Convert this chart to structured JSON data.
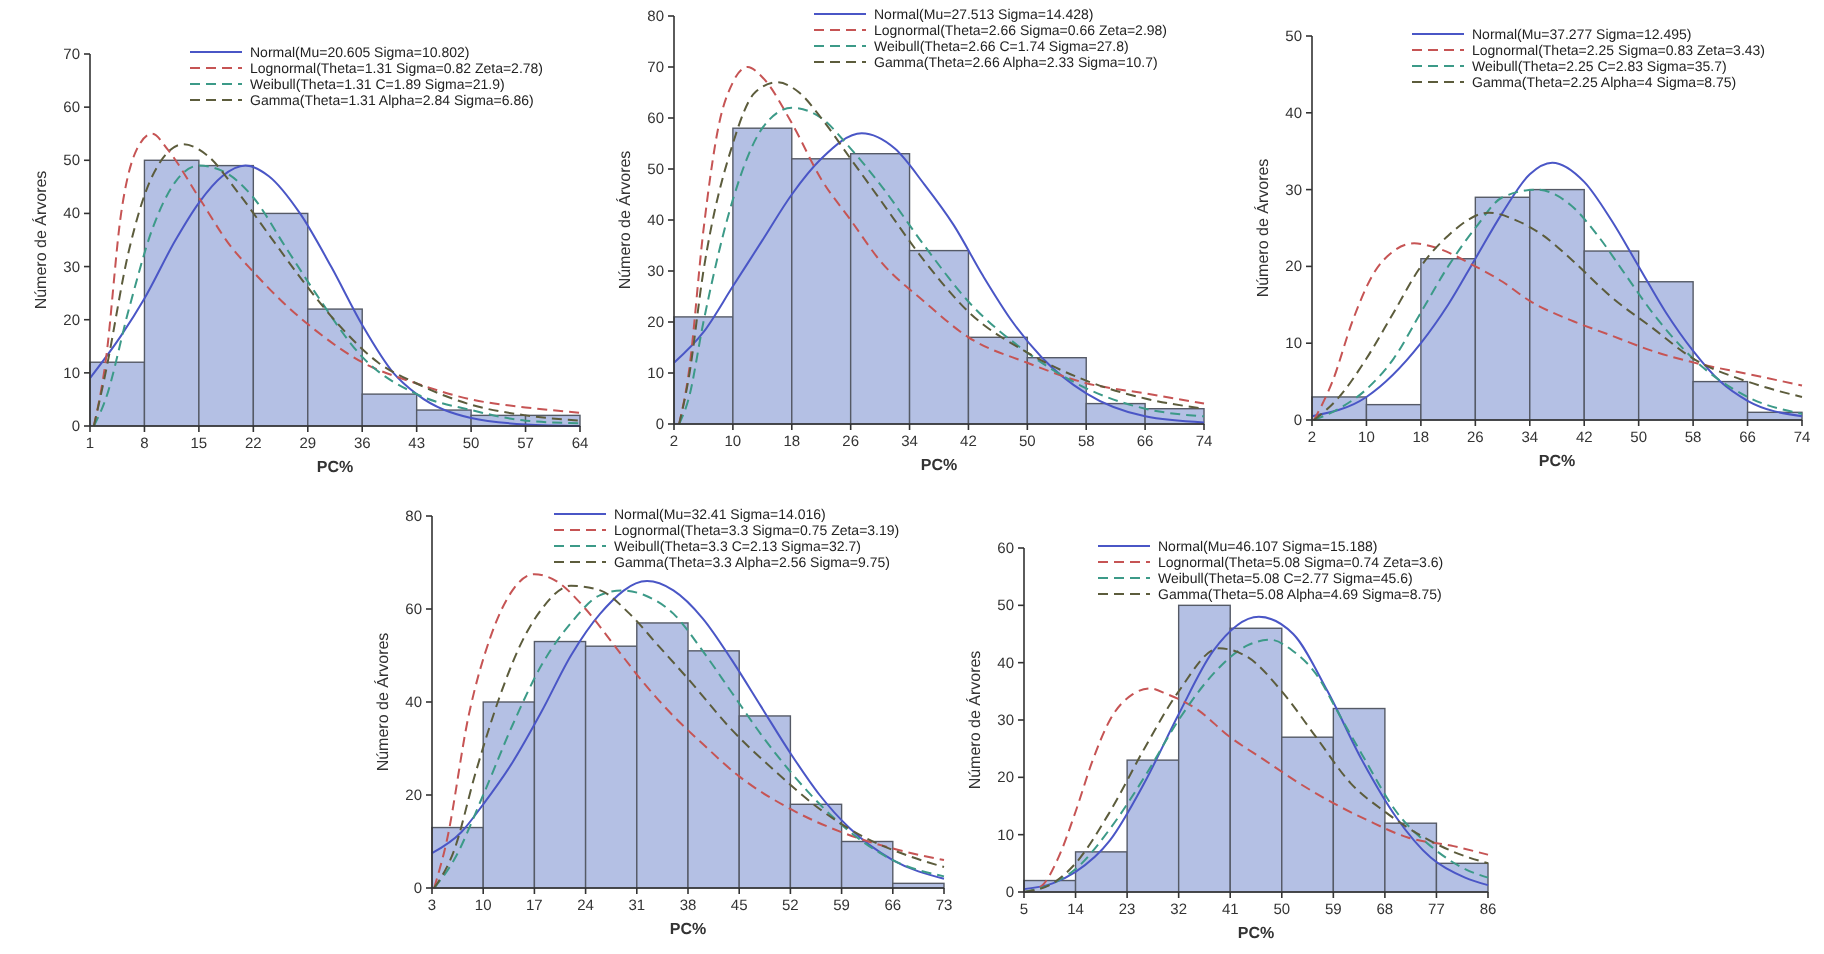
{
  "chart_data": [
    {
      "type": "histogram",
      "xlabel": "PC%",
      "ylabel": "Número de Árvores",
      "bins": [
        1,
        8,
        15,
        22,
        29,
        36,
        43,
        50,
        57,
        64
      ],
      "values": [
        12,
        50,
        49,
        40,
        22,
        6,
        3,
        2,
        2
      ],
      "color": "#b4c0e4",
      "xlim": [
        1,
        64
      ],
      "xticks": [
        1,
        8,
        15,
        22,
        29,
        36,
        43,
        50,
        57,
        64
      ],
      "ylim": [
        0,
        70
      ],
      "yticks": [
        0,
        10,
        20,
        30,
        40,
        50,
        60,
        70
      ],
      "legend": "top right",
      "series": [
        {
          "name": "Normal(Mu=20.605 Sigma=10.802)",
          "type": "line",
          "color": "#4a56c6",
          "line_style": "solid",
          "x": [
            1,
            5,
            8,
            12,
            15,
            18,
            21,
            24,
            28,
            32,
            36,
            40,
            43,
            50,
            57,
            64
          ],
          "values": [
            9,
            17,
            24,
            35,
            42,
            47,
            49,
            47,
            40,
            30,
            19,
            10,
            6,
            1.5,
            0.3,
            0
          ]
        },
        {
          "name": "Lognormal(Theta=1.31 Sigma=0.82 Zeta=2.78)",
          "type": "line",
          "color": "#c65454",
          "line_style": "dashed",
          "x": [
            1.5,
            3,
            5,
            7,
            9,
            11,
            15,
            19,
            22,
            26,
            30,
            36,
            43,
            50,
            57,
            64
          ],
          "values": [
            0,
            12,
            40,
            52,
            55,
            52,
            43,
            34,
            29,
            23,
            18,
            12,
            8,
            5,
            3.5,
            2.5
          ]
        },
        {
          "name": "Weibull(Theta=1.31 C=1.89 Sigma=21.9)",
          "type": "line",
          "color": "#3c9a88",
          "line_style": "dashed",
          "x": [
            1.5,
            3,
            6,
            9,
            12,
            15,
            18,
            22,
            26,
            30,
            36,
            43,
            50,
            57,
            64
          ],
          "values": [
            0,
            5,
            22,
            37,
            46,
            49,
            48,
            43,
            34,
            25,
            13,
            6,
            3,
            1,
            0.5
          ]
        },
        {
          "name": "Gamma(Theta=1.31 Alpha=2.84 Sigma=6.86)",
          "type": "line",
          "color": "#5c5c3c",
          "line_style": "dashed",
          "x": [
            1.5,
            3,
            6,
            9,
            13,
            16,
            20,
            24,
            28,
            33,
            38,
            43,
            50,
            57,
            64
          ],
          "values": [
            0,
            10,
            33,
            47,
            53,
            51,
            44,
            36,
            28,
            19,
            12,
            8,
            4,
            2,
            1
          ]
        }
      ]
    },
    {
      "type": "histogram",
      "xlabel": "PC%",
      "ylabel": "Número de Árvores",
      "bins": [
        2,
        10,
        18,
        26,
        34,
        42,
        50,
        58,
        66,
        74
      ],
      "values": [
        21,
        58,
        52,
        53,
        34,
        17,
        13,
        4,
        3
      ],
      "color": "#b4c0e4",
      "xlim": [
        2,
        74
      ],
      "xticks": [
        2,
        10,
        18,
        26,
        34,
        42,
        50,
        58,
        66,
        74
      ],
      "ylim": [
        0,
        80
      ],
      "yticks": [
        0,
        10,
        20,
        30,
        40,
        50,
        60,
        70,
        80
      ],
      "legend": "top right",
      "series": [
        {
          "name": "Normal(Mu=27.513 Sigma=14.428)",
          "type": "line",
          "color": "#4a56c6",
          "line_style": "solid",
          "x": [
            2,
            6,
            10,
            14,
            18,
            22,
            27.5,
            32,
            36,
            40,
            44,
            48,
            52,
            58,
            66,
            74
          ],
          "values": [
            12,
            18,
            27,
            36,
            45,
            52,
            57,
            54,
            47,
            39,
            29,
            20,
            13,
            6,
            1.5,
            0.3
          ]
        },
        {
          "name": "Lognormal(Theta=2.66 Sigma=0.66 Zeta=2.98)",
          "type": "line",
          "color": "#c65454",
          "line_style": "dashed",
          "x": [
            2.7,
            4,
            6,
            8,
            10,
            12,
            14,
            18,
            22,
            26,
            30,
            36,
            42,
            50,
            58,
            66,
            74
          ],
          "values": [
            0,
            10,
            38,
            58,
            67,
            70,
            68,
            59,
            48,
            40,
            32,
            24,
            17,
            12,
            8,
            6,
            4
          ]
        },
        {
          "name": "Weibull(Theta=2.66 C=1.74 Sigma=27.8)",
          "type": "line",
          "color": "#3c9a88",
          "line_style": "dashed",
          "x": [
            2.7,
            4,
            6,
            10,
            14,
            18,
            22,
            26,
            30,
            36,
            42,
            50,
            58,
            66,
            74
          ],
          "values": [
            0,
            5,
            20,
            44,
            58,
            62,
            60,
            54,
            47,
            35,
            24,
            14,
            7,
            3,
            1.5
          ]
        },
        {
          "name": "Gamma(Theta=2.66 Alpha=2.33 Sigma=10.7)",
          "type": "line",
          "color": "#5c5c3c",
          "line_style": "dashed",
          "x": [
            2.7,
            4,
            6,
            10,
            13,
            16,
            19,
            22,
            26,
            30,
            36,
            42,
            50,
            58,
            66,
            74
          ],
          "values": [
            0,
            9,
            30,
            55,
            65,
            67,
            65,
            60,
            52,
            44,
            32,
            22,
            14,
            8.5,
            5,
            3
          ]
        }
      ]
    },
    {
      "type": "histogram",
      "xlabel": "PC%",
      "ylabel": "Número de Árvores",
      "bins": [
        2,
        10,
        18,
        26,
        34,
        42,
        50,
        58,
        66,
        74
      ],
      "values": [
        3,
        2,
        21,
        29,
        30,
        22,
        18,
        5,
        1
      ],
      "color": "#b4c0e4",
      "xlim": [
        2,
        74
      ],
      "xticks": [
        2,
        10,
        18,
        26,
        34,
        42,
        50,
        58,
        66,
        74
      ],
      "ylim": [
        0,
        50
      ],
      "yticks": [
        0,
        10,
        20,
        30,
        40,
        50
      ],
      "legend": "top right",
      "series": [
        {
          "name": "Normal(Mu=37.277 Sigma=12.495)",
          "type": "line",
          "color": "#4a56c6",
          "line_style": "solid",
          "x": [
            2,
            10,
            18,
            22,
            26,
            30,
            34,
            37.3,
            42,
            46,
            50,
            54,
            58,
            62,
            66,
            74
          ],
          "values": [
            0.5,
            3,
            10,
            15,
            21,
            27,
            32,
            33.5,
            31,
            26,
            20,
            14,
            9,
            5,
            2.5,
            0.5
          ]
        },
        {
          "name": "Lognormal(Theta=2.25 Sigma=0.83 Zeta=3.43)",
          "type": "line",
          "color": "#c65454",
          "line_style": "dashed",
          "x": [
            2.3,
            5,
            8,
            11,
            14,
            17,
            20,
            26,
            30,
            34,
            40,
            46,
            52,
            58,
            66,
            74
          ],
          "values": [
            0,
            5,
            13,
            19,
            22,
            23,
            22.5,
            20,
            18,
            15.5,
            13,
            11,
            9,
            7.5,
            6,
            4.5
          ]
        },
        {
          "name": "Weibull(Theta=2.25 C=2.83 Sigma=35.7)",
          "type": "line",
          "color": "#3c9a88",
          "line_style": "dashed",
          "x": [
            2.3,
            6,
            10,
            14,
            18,
            22,
            26,
            30,
            35,
            40,
            44,
            48,
            52,
            58,
            66,
            74
          ],
          "values": [
            0,
            1.5,
            4,
            8,
            14,
            20,
            25,
            29,
            30,
            28,
            24,
            19,
            14,
            8,
            3,
            0.8
          ]
        },
        {
          "name": "Gamma(Theta=2.25 Alpha=4 Sigma=8.75)",
          "type": "line",
          "color": "#5c5c3c",
          "line_style": "dashed",
          "x": [
            2.3,
            6,
            10,
            14,
            18,
            22,
            28,
            32,
            36,
            40,
            46,
            52,
            58,
            66,
            74
          ],
          "values": [
            0,
            3,
            8,
            14,
            20,
            24,
            27,
            26,
            24,
            21,
            16,
            12,
            8,
            5,
            3
          ]
        }
      ]
    },
    {
      "type": "histogram",
      "xlabel": "PC%",
      "ylabel": "Número de Árvores",
      "bins": [
        3,
        10,
        17,
        24,
        31,
        38,
        45,
        52,
        59,
        66,
        73
      ],
      "values": [
        13,
        40,
        53,
        52,
        57,
        51,
        37,
        18,
        10,
        1
      ],
      "color": "#b4c0e4",
      "xlim": [
        3,
        73
      ],
      "xticks": [
        3,
        10,
        17,
        24,
        31,
        38,
        45,
        52,
        59,
        66,
        73
      ],
      "ylim": [
        0,
        80
      ],
      "yticks": [
        0,
        20,
        40,
        60,
        80
      ],
      "legend": "top right",
      "series": [
        {
          "name": "Normal(Mu=32.41 Sigma=14.016)",
          "type": "line",
          "color": "#4a56c6",
          "line_style": "solid",
          "x": [
            3,
            7,
            10,
            14,
            18,
            22,
            26,
            32.4,
            36,
            40,
            44,
            48,
            52,
            56,
            60,
            66,
            73
          ],
          "values": [
            7.5,
            12,
            18,
            27,
            38,
            50,
            59,
            66,
            64,
            58,
            49,
            39,
            29,
            20,
            13,
            6,
            2
          ]
        },
        {
          "name": "Lognormal(Theta=3.3 Sigma=0.75 Zeta=3.19)",
          "type": "line",
          "color": "#c65454",
          "line_style": "dashed",
          "x": [
            3.3,
            5,
            8,
            11,
            14,
            17,
            20,
            24,
            28,
            32,
            36,
            40,
            45,
            52,
            59,
            66,
            73
          ],
          "values": [
            0,
            10,
            37,
            54,
            64,
            67.5,
            66,
            60,
            52,
            44,
            37,
            31,
            24,
            17,
            12,
            8.5,
            6
          ]
        },
        {
          "name": "Weibull(Theta=3.3 C=2.13 Sigma=32.7)",
          "type": "line",
          "color": "#3c9a88",
          "line_style": "dashed",
          "x": [
            3.3,
            6,
            10,
            14,
            18,
            22,
            26,
            29,
            32,
            36,
            40,
            44,
            48,
            52,
            58,
            66,
            73
          ],
          "values": [
            0,
            6,
            20,
            35,
            48,
            57,
            63,
            64,
            63,
            59,
            51,
            42,
            33,
            25,
            15,
            6,
            2.5
          ]
        },
        {
          "name": "Gamma(Theta=3.3 Alpha=2.56 Sigma=9.75)",
          "type": "line",
          "color": "#5c5c3c",
          "line_style": "dashed",
          "x": [
            3.3,
            6,
            9,
            12,
            15,
            18,
            22,
            26,
            30,
            34,
            38,
            44,
            50,
            56,
            62,
            68,
            73
          ],
          "values": [
            0,
            8,
            25,
            40,
            52,
            60,
            65,
            64,
            59,
            52,
            45,
            34,
            25,
            17,
            11,
            7,
            4.5
          ]
        }
      ]
    },
    {
      "type": "histogram",
      "xlabel": "PC%",
      "ylabel": "Número de Árvores",
      "bins": [
        5,
        14,
        23,
        32,
        41,
        50,
        59,
        68,
        77,
        86
      ],
      "values": [
        2,
        7,
        23,
        50,
        46,
        27,
        32,
        12,
        5
      ],
      "color": "#b4c0e4",
      "xlim": [
        5,
        86
      ],
      "xticks": [
        5,
        14,
        23,
        32,
        41,
        50,
        59,
        68,
        77,
        86
      ],
      "ylim": [
        0,
        60
      ],
      "yticks": [
        0,
        10,
        20,
        30,
        40,
        50,
        60
      ],
      "legend": "top right",
      "series": [
        {
          "name": "Normal(Mu=46.107 Sigma=15.188)",
          "type": "line",
          "color": "#4a56c6",
          "line_style": "solid",
          "x": [
            5,
            10,
            14,
            20,
            26,
            32,
            38,
            46,
            52,
            58,
            64,
            70,
            76,
            82,
            86
          ],
          "values": [
            0.5,
            1.5,
            3.5,
            9,
            19,
            31,
            42,
            48,
            45,
            35,
            23,
            13,
            6,
            2.5,
            1.2
          ]
        },
        {
          "name": "Lognormal(Theta=5.08 Sigma=0.74 Zeta=3.6)",
          "type": "line",
          "color": "#c65454",
          "line_style": "dashed",
          "x": [
            5.1,
            8,
            11,
            14,
            17,
            20,
            24,
            27,
            30,
            35,
            41,
            47,
            53,
            59,
            65,
            72,
            80,
            86
          ],
          "values": [
            0,
            1,
            6,
            14,
            23,
            30,
            34.5,
            35.5,
            34.5,
            32,
            27,
            23,
            19,
            15.5,
            12.5,
            9.5,
            8,
            6.5
          ]
        },
        {
          "name": "Weibull(Theta=5.08 C=2.77 Sigma=45.6)",
          "type": "line",
          "color": "#3c9a88",
          "line_style": "dashed",
          "x": [
            5.1,
            10,
            14,
            20,
            26,
            32,
            38,
            44,
            48,
            52,
            56,
            60,
            64,
            70,
            76,
            82,
            86
          ],
          "values": [
            0,
            1.5,
            4,
            11,
            20,
            30,
            38,
            43,
            44,
            42,
            38,
            31,
            24,
            14,
            8,
            4,
            2.5
          ]
        },
        {
          "name": "Gamma(Theta=5.08 Alpha=4.69 Sigma=8.75)",
          "type": "line",
          "color": "#5c5c3c",
          "line_style": "dashed",
          "x": [
            5.1,
            10,
            14,
            20,
            26,
            32,
            39,
            44,
            50,
            56,
            62,
            68,
            74,
            80,
            86
          ],
          "values": [
            0,
            1.5,
            5,
            14,
            25,
            35,
            42.5,
            41,
            35,
            27,
            19,
            14,
            10,
            7,
            5
          ]
        }
      ]
    }
  ]
}
